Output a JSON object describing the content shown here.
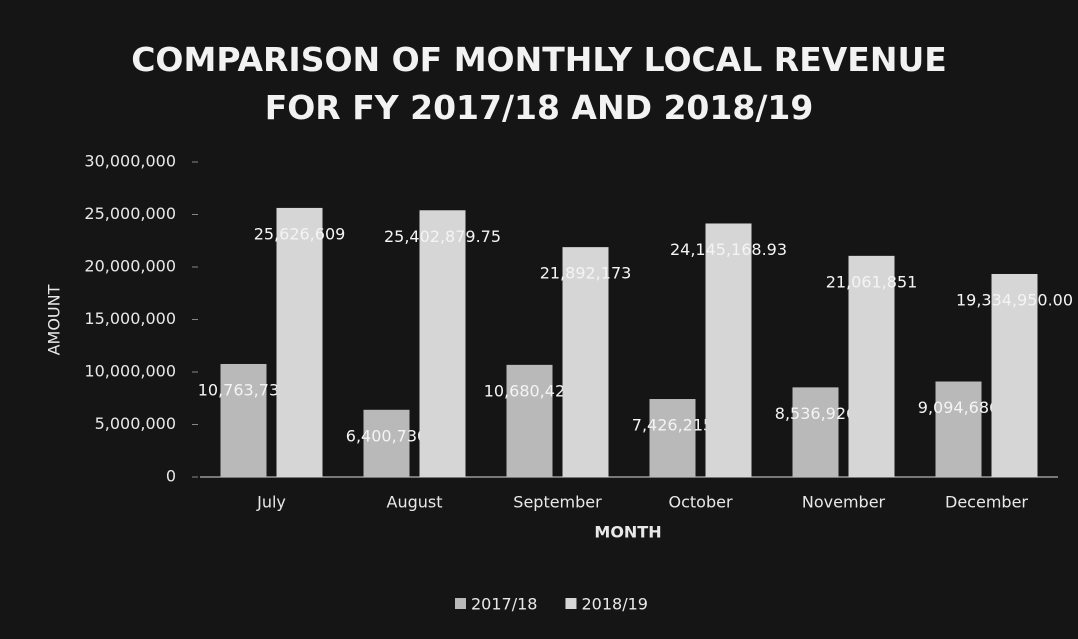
{
  "chart_data": {
    "type": "bar",
    "title": "COMPARISON OF MONTHLY LOCAL REVENUE FOR FY 2017/18 AND 2018/19",
    "x_label": "MONTH",
    "y_label": "AMOUNT",
    "categories": [
      "July",
      "August",
      "September",
      "October",
      "November",
      "December"
    ],
    "series": [
      {
        "name": "2017/18",
        "color": "#b9b9b9",
        "values": [
          10763732,
          6400730,
          10680421,
          7426215,
          8536926,
          9094686
        ],
        "value_labels": [
          "10,763,732",
          "6,400,730",
          "10,680,421",
          "7,426,215",
          "8,536,926",
          "9,094,686"
        ]
      },
      {
        "name": "2018/19",
        "color": "#d6d6d6",
        "values": [
          25626609,
          25402879.75,
          21892173,
          24145168.93,
          21061851,
          19334950
        ],
        "value_labels": [
          "25,626,609",
          "25,402,879.75",
          "21,892,173",
          "24,145,168.93",
          "21,061,851",
          "19,334,950.00"
        ]
      }
    ],
    "ylim": [
      0,
      30000000
    ],
    "yticks": [
      0,
      {
        "value": 5000000,
        "label": "5,000,000"
      },
      {
        "value": 10000000,
        "label": "10,000,000"
      },
      {
        "value": 15000000,
        "label": "15,000,000"
      },
      {
        "value": 20000000,
        "label": "20,000,000"
      },
      {
        "value": 25000000,
        "label": "25,000,000"
      },
      {
        "value": 30000000,
        "label": "30,000,000"
      }
    ],
    "grid": false,
    "legend": "bottom"
  }
}
